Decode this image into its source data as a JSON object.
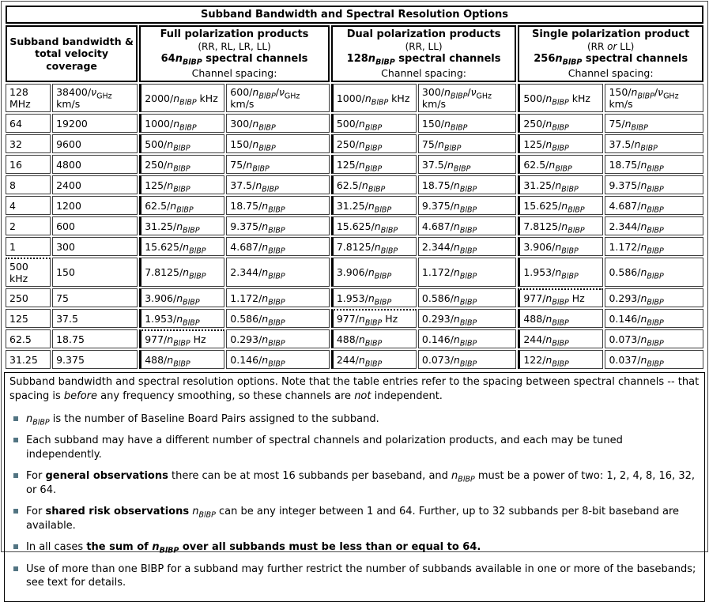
{
  "title": "Subband Bandwidth and Spectral Resolution Options",
  "header": {
    "bandwidth_header": "Subband bandwidth & total velocity coverage",
    "groups": [
      {
        "title": "Full polarization products",
        "pols": "(RR, RL, LR, LL)",
        "channels": "64*n*_{*BlBP*} spectral channels",
        "spacing_label": "Channel spacing:"
      },
      {
        "title": "Dual polarization products",
        "pols": "(RR, LL)",
        "channels": "128*n*_{*BlBP*} spectral channels",
        "spacing_label": "Channel spacing:"
      },
      {
        "title": "Single polarization product",
        "pols": "(RR *or* LL)",
        "channels": "256*n*_{*BlBP*} spectral channels",
        "spacing_label": "Channel spacing:"
      }
    ]
  },
  "table": {
    "rows": [
      {
        "cells": [
          "128 MHz",
          "38400/*ν*_{GHz} km/s",
          "2000/*n*_{*BlBP*} kHz",
          "600/*n*_{*BlBP*}/*ν*_{GHz} km/s",
          "1000/*n*_{*BlBP*} kHz",
          "300/*n*_{*BlBP*}/*ν*_{GHz} km/s",
          "500/*n*_{*BlBP*} kHz",
          "150/*n*_{*BlBP*}/*ν*_{GHz} km/s"
        ],
        "dotted": []
      },
      {
        "cells": [
          "64",
          "19200",
          "1000/*n*_{*BlBP*}",
          "300/*n*_{*BlBP*}",
          "500/*n*_{*BlBP*}",
          "150/*n*_{*BlBP*}",
          "250/*n*_{*BlBP*}",
          "75/*n*_{*BlBP*}"
        ],
        "dotted": []
      },
      {
        "cells": [
          "32",
          "9600",
          "500/*n*_{*BlBP*}",
          "150/*n*_{*BlBP*}",
          "250/*n*_{*BlBP*}",
          "75/*n*_{*BlBP*}",
          "125/*n*_{*BlBP*}",
          "37.5/*n*_{*BlBP*}"
        ],
        "dotted": []
      },
      {
        "cells": [
          "16",
          "4800",
          "250/*n*_{*BlBP*}",
          "75/*n*_{*BlBP*}",
          "125/*n*_{*BlBP*}",
          "37.5/*n*_{*BlBP*}",
          "62.5/*n*_{*BlBP*}",
          "18.75/*n*_{*BlBP*}"
        ],
        "dotted": []
      },
      {
        "cells": [
          "8",
          "2400",
          "125/*n*_{*BlBP*}",
          "37.5/*n*_{*BlBP*}",
          "62.5/*n*_{*BlBP*}",
          "18.75/*n*_{*BlBP*}",
          "31.25/*n*_{*BlBP*}",
          "9.375/*n*_{*BlBP*}"
        ],
        "dotted": []
      },
      {
        "cells": [
          "4",
          "1200",
          "62.5/*n*_{*BlBP*}",
          "18.75/*n*_{*BlBP*}",
          "31.25/*n*_{*BlBP*}",
          "9.375/*n*_{*BlBP*}",
          "15.625/*n*_{*BlBP*}",
          "4.687/*n*_{*BlBP*}"
        ],
        "dotted": []
      },
      {
        "cells": [
          "2",
          "600",
          "31.25/*n*_{*BlBP*}",
          "9.375/*n*_{*BlBP*}",
          "15.625/*n*_{*BlBP*}",
          "4.687/*n*_{*BlBP*}",
          "7.8125/*n*_{*BlBP*}",
          "2.344/*n*_{*BlBP*}"
        ],
        "dotted": []
      },
      {
        "cells": [
          "1",
          "300",
          "15.625/*n*_{*BlBP*}",
          "4.687/*n*_{*BlBP*}",
          "7.8125/*n*_{*BlBP*}",
          "2.344/*n*_{*BlBP*}",
          "3.906/*n*_{*BlBP*}",
          "1.172/*n*_{*BlBP*}"
        ],
        "dotted": []
      },
      {
        "cells": [
          "500 kHz",
          "150",
          "7.8125/*n*_{*BlBP*}",
          "2.344/*n*_{*BlBP*}",
          "3.906/*n*_{*BlBP*}",
          "1.172/*n*_{*BlBP*}",
          "1.953/*n*_{*BlBP*}",
          "0.586/*n*_{*BlBP*}"
        ],
        "dotted": [
          0
        ]
      },
      {
        "cells": [
          "250",
          "75",
          "3.906/*n*_{*BlBP*}",
          "1.172/*n*_{*BlBP*}",
          "1.953/*n*_{*BlBP*}",
          "0.586/*n*_{*BlBP*}",
          "977/*n*_{*BlBP*} Hz",
          "0.293/*n*_{*BlBP*}"
        ],
        "dotted": [
          6
        ]
      },
      {
        "cells": [
          "125",
          "37.5",
          "1.953/*n*_{*BlBP*}",
          "0.586/*n*_{*BlBP*}",
          "977/*n*_{*BlBP*} Hz",
          "0.293/*n*_{*BlBP*}",
          "488/*n*_{*BlBP*}",
          "0.146/*n*_{*BlBP*}"
        ],
        "dotted": [
          4
        ]
      },
      {
        "cells": [
          "62.5",
          "18.75",
          "977/*n*_{*BlBP*} Hz",
          "0.293/*n*_{*BlBP*}",
          "488/*n*_{*BlBP*}",
          "0.146/*n*_{*BlBP*}",
          "244/*n*_{*BlBP*}",
          "0.073/*n*_{*BlBP*}"
        ],
        "dotted": [
          2
        ]
      },
      {
        "cells": [
          "31.25",
          "9.375",
          "488/*n*_{*BlBP*}",
          "0.146/*n*_{*BlBP*}",
          "244/*n*_{*BlBP*}",
          "0.073/*n*_{*BlBP*}",
          "122/*n*_{*BlBP*}",
          "0.037/*n*_{*BlBP*}"
        ],
        "dotted": []
      }
    ]
  },
  "footer": {
    "caption": "Subband bandwidth and spectral resolution options. Note that the table entries refer to the spacing between spectral channels -- that spacing is *before* any frequency smoothing, so these channels are *not* independent.",
    "bullets": [
      "*n*_{*BlBP*} is the number of Baseline Board Pairs assigned to the subband.",
      "Each subband may have a different number of spectral channels and polarization products, and each may be tuned independently.",
      "For **general observations** there can be at most 16 subbands per baseband, and *n*_{*BlBP*} must be a power of two: 1, 2, 4, 8, 16, 32, or 64.",
      "For **shared risk observations** *n*_{*BlBP*} can be any integer between 1 and 64. Further, up to 32 subbands per 8-bit baseband are available.",
      "In all cases **the sum of *n*_{*BlBP*} over all subbands must be less than or equal to 64.**",
      "Use of more than one BlBP for a subband may further restrict the number of subbands available in one or more of the basebands; see text for details."
    ],
    "bullet_color": "#527482"
  }
}
